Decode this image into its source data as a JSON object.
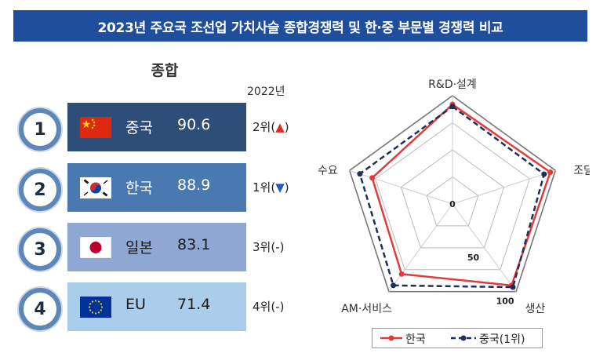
{
  "title": "2023년 주요국 조선업 가치사슬 종합경쟁력 및 한·중 부문별 경쟁력 비교",
  "ranking": {
    "heading": "종합",
    "year_label": "2022년",
    "rows": [
      {
        "rank": "1",
        "country": "중국",
        "score": "90.6",
        "prev": "2위(",
        "arrow": "▲",
        "close": ")",
        "arrow_dir": "up",
        "color": "#2e4e7a",
        "text_color": "#ffffff",
        "flag": "china-flag"
      },
      {
        "rank": "2",
        "country": "한국",
        "score": "88.9",
        "prev": "1위(",
        "arrow": "▼",
        "close": ")",
        "arrow_dir": "down",
        "color": "#4a78b0",
        "text_color": "#ffffff",
        "flag": "korea-flag"
      },
      {
        "rank": "3",
        "country": "일본",
        "score": "83.1",
        "prev": "3위(-)",
        "arrow": "",
        "close": "",
        "arrow_dir": "none",
        "color": "#8ea7d3",
        "text_color": "#1a1a1a",
        "flag": "japan-flag"
      },
      {
        "rank": "4",
        "country": "EU",
        "score": "71.4",
        "prev": "4위(-)",
        "arrow": "",
        "close": "",
        "arrow_dir": "none",
        "color": "#a9cdea",
        "text_color": "#1a1a1a",
        "flag": "eu-flag"
      }
    ]
  },
  "chart_data": {
    "type": "radar",
    "axes": [
      "R&D·설계",
      "조달",
      "생산",
      "AM·서비스",
      "수요"
    ],
    "scale_labels": [
      "0",
      "50",
      "100"
    ],
    "range": [
      0,
      100
    ],
    "series": [
      {
        "name": "한국",
        "values": [
          92,
          95,
          93,
          80,
          78
        ],
        "color": "#e23b3b",
        "style": "solid"
      },
      {
        "name": "중국(1위)",
        "values": [
          90,
          89,
          95,
          93,
          90
        ],
        "color": "#1f2f5c",
        "style": "dashed"
      }
    ],
    "legend_placement": "bottom"
  }
}
